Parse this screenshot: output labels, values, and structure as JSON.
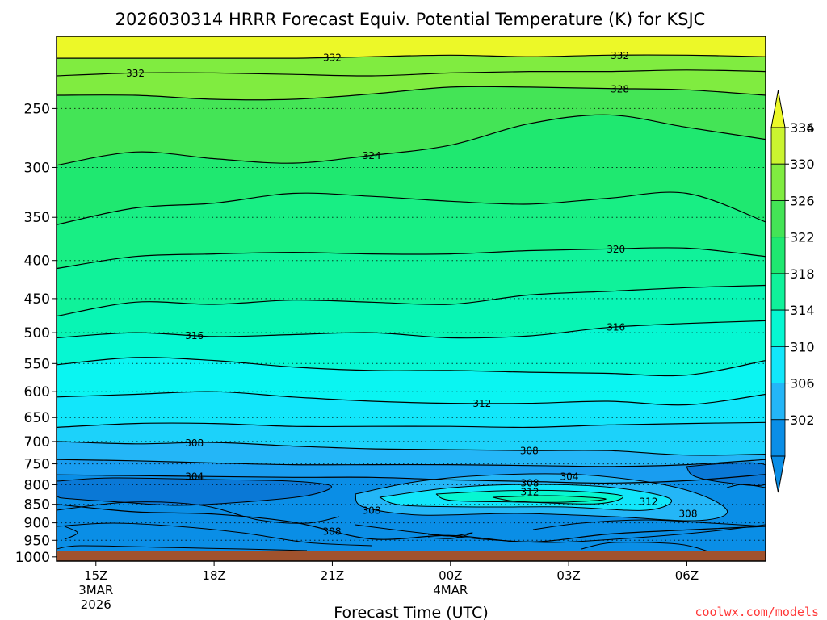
{
  "chart_data": {
    "type": "heatmap",
    "title": "2026030314 HRRR Forecast Equiv. Potential Temperature (K) for KSJC",
    "xlabel": "Forecast Time (UTC)",
    "ylabel": "",
    "y_ticks": [
      "250",
      "300",
      "350",
      "400",
      "450",
      "500",
      "550",
      "600",
      "650",
      "700",
      "750",
      "800",
      "850",
      "900",
      "950",
      "1000"
    ],
    "y_values": [
      250,
      300,
      350,
      400,
      450,
      500,
      550,
      600,
      650,
      700,
      750,
      800,
      850,
      900,
      950,
      1000
    ],
    "ylim": [
      200,
      1013
    ],
    "x_ticks": [
      {
        "hour": 15,
        "label": "15Z",
        "line2": "3MAR",
        "line3": "2026"
      },
      {
        "hour": 18,
        "label": "18Z",
        "line2": "",
        "line3": ""
      },
      {
        "hour": 21,
        "label": "21Z",
        "line2": "",
        "line3": ""
      },
      {
        "hour": 24,
        "label": "00Z",
        "line2": "4MAR",
        "line3": ""
      },
      {
        "hour": 27,
        "label": "03Z",
        "line2": "",
        "line3": ""
      },
      {
        "hour": 30,
        "label": "06Z",
        "line2": "",
        "line3": ""
      }
    ],
    "xlim": [
      14,
      32
    ],
    "colorbar": {
      "levels": [
        302,
        304,
        306,
        308,
        310,
        312,
        314,
        316,
        318,
        320,
        322,
        324,
        326,
        328,
        330,
        332,
        334,
        336
      ],
      "labels": [
        "302",
        "306",
        "310",
        "314",
        "318",
        "322",
        "326",
        "330",
        "334",
        "336"
      ],
      "colors": [
        "#0a8ee6",
        "#199df0",
        "#24b6f7",
        "#1cd2fa",
        "#12e6fb",
        "#0af5f2",
        "#06f7d2",
        "#08f5b4",
        "#10f29a",
        "#18ee84",
        "#1fe870",
        "#2fe462",
        "#44e456",
        "#60e84a",
        "#80ec40",
        "#a4f038",
        "#caf430",
        "#ecf828"
      ]
    },
    "contour_lines": [
      {
        "value": 332,
        "label": "332",
        "pressure": [
          214,
          214,
          214,
          214,
          213,
          212,
          213,
          212,
          212,
          213
        ]
      },
      {
        "value": 332,
        "label": "332",
        "pressure": [
          226,
          224,
          224,
          225,
          226,
          224,
          223,
          223,
          222,
          223
        ]
      },
      {
        "value": 328,
        "label": "328",
        "pressure": [
          240,
          240,
          243,
          243,
          239,
          234,
          234,
          235,
          236,
          240
        ]
      },
      {
        "value": 324,
        "label": "324",
        "pressure": [
          298,
          286,
          292,
          296,
          289,
          280,
          262,
          255,
          265,
          275
        ]
      },
      {
        "value": 322,
        "label": "322",
        "pressure": [
          358,
          340,
          335,
          325,
          328,
          333,
          336,
          330,
          325,
          355
        ]
      },
      {
        "value": 320,
        "label": "320",
        "pressure": [
          410,
          395,
          392,
          390,
          392,
          392,
          388,
          386,
          385,
          395
        ]
      },
      {
        "value": 318,
        "label": "318",
        "pressure": [
          475,
          455,
          458,
          452,
          455,
          458,
          445,
          440,
          435,
          432
        ]
      },
      {
        "value": 316,
        "label": "316",
        "pressure": [
          508,
          500,
          506,
          503,
          500,
          508,
          505,
          492,
          486,
          482
        ]
      },
      {
        "value": 314,
        "label": "314",
        "pressure": [
          552,
          540,
          545,
          556,
          562,
          562,
          565,
          567,
          570,
          545
        ]
      },
      {
        "value": 312,
        "label": "312",
        "pressure": [
          610,
          605,
          600,
          610,
          618,
          622,
          622,
          618,
          625,
          605
        ]
      },
      {
        "value": 310,
        "label": "310",
        "pressure": [
          670,
          662,
          662,
          668,
          668,
          668,
          670,
          665,
          662,
          660
        ]
      },
      {
        "value": 308,
        "label": "308",
        "pressure": [
          700,
          705,
          702,
          710,
          716,
          718,
          720,
          720,
          730,
          728
        ]
      },
      {
        "value": 306,
        "label": "306",
        "pressure": [
          740,
          743,
          748,
          752,
          752,
          752,
          754,
          756,
          752,
          740
        ]
      },
      {
        "value": 304,
        "label": "304",
        "pressure": [
          776,
          778,
          780,
          782,
          782,
          788,
          792,
          796,
          790,
          775
        ]
      },
      {
        "value": 302,
        "label": "",
        "pressure": [
          850,
          870,
          876,
          898,
          946,
          936,
          955,
          932,
          920,
          910
        ]
      }
    ],
    "inner_labels": [
      "308",
      "312",
      "312",
      "308",
      "308",
      "304",
      "308"
    ],
    "ground_color": "#a0522d",
    "credit": "coolwx.com/models",
    "credit_color": "#ff3838"
  }
}
